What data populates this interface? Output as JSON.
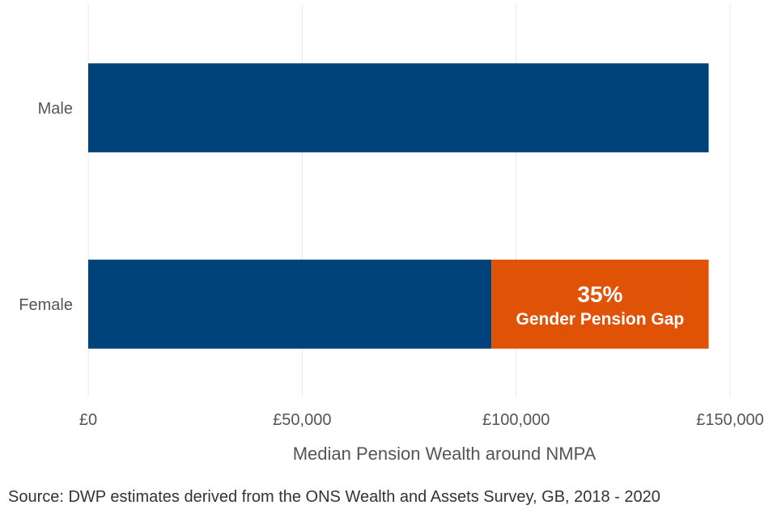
{
  "chart_data": {
    "type": "bar",
    "orientation": "horizontal",
    "categories": [
      "Male",
      "Female"
    ],
    "series": [
      {
        "values": [
          145000,
          94250
        ],
        "color": "#00437a"
      },
      {
        "values": [
          0,
          50750
        ],
        "color": "#e05206"
      }
    ],
    "xlabel": "Median Pension Wealth around NMPA",
    "xlim": [
      0,
      150000
    ],
    "xticks": [
      0,
      50000,
      100000,
      150000
    ],
    "xtick_labels": [
      "£0",
      "£50,000",
      "£100,000",
      "£150,000"
    ],
    "grid": "vertical",
    "annotation": {
      "category": "Female",
      "series_index": 1,
      "line1": "35%",
      "line2": "Gender Pension Gap"
    }
  },
  "source": "Source: DWP estimates derived from the ONS Wealth and Assets Survey, GB, 2018 - 2020"
}
